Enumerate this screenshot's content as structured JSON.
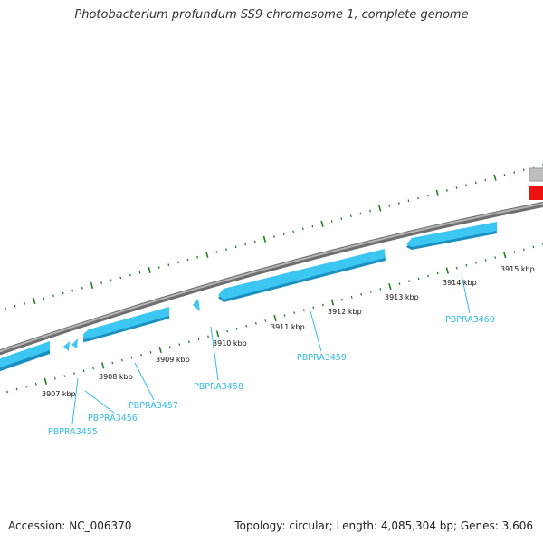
{
  "title": "Photobacterium profundum SS9 chromosome 1, complete genome",
  "footer": {
    "accession": "Accession: NC_006370",
    "stats": "Topology: circular; Length: 4,085,304 bp; Genes: 3,606"
  },
  "colors": {
    "backbone": "#8a8a8a",
    "gene_fill": "#3cc6f2",
    "gene_shadow": "#1b90c0",
    "gene_label": "#33bde6",
    "tick_green": "#2a7a2a",
    "feature_red": "#ee1111",
    "feature_grey": "#bdbdbd"
  },
  "scale_labels": [
    "3907 kbp",
    "3908 kbp",
    "3909 kbp",
    "3910 kbp",
    "3911 kbp",
    "3912 kbp",
    "3913 kbp",
    "3914 kbp",
    "3915 kbp"
  ],
  "gene_labels": [
    "PBPRA3455",
    "PBPRA3456",
    "PBPRA3457",
    "PBPRA3458",
    "PBPRA3459",
    "PBPRA3460"
  ]
}
